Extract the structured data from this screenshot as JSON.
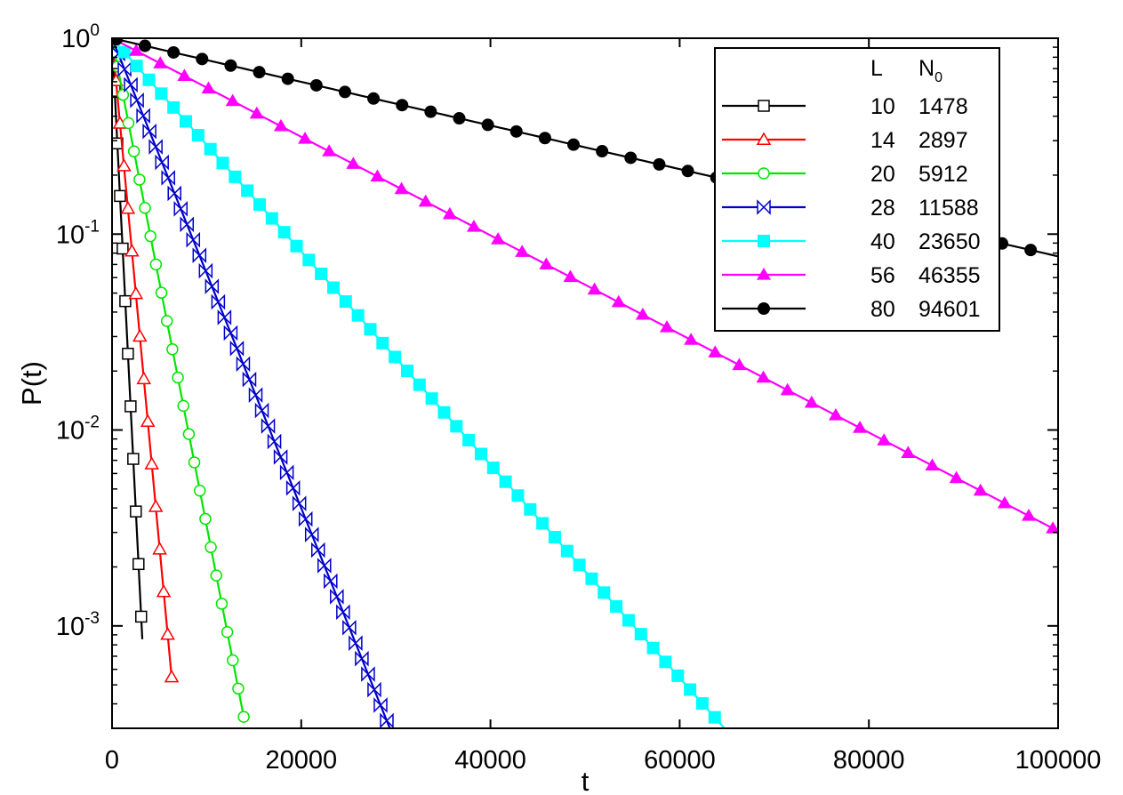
{
  "chart_data": {
    "type": "line",
    "title": "",
    "xlabel": "t",
    "ylabel": "P(t)",
    "xlim": [
      0,
      100000
    ],
    "ylim": [
      0.0003,
      1.0
    ],
    "yscale": "log",
    "x_ticks": [
      0,
      20000,
      40000,
      60000,
      80000,
      100000
    ],
    "x_tick_labels": [
      "0",
      "20000",
      "40000",
      "60000",
      "80000",
      "100000"
    ],
    "y_ticks": [
      {
        "value": 1,
        "base": "10",
        "exp": "0"
      },
      {
        "value": 0.1,
        "base": "10",
        "exp": "-1"
      },
      {
        "value": 0.01,
        "base": "10",
        "exp": "-2"
      },
      {
        "value": 0.001,
        "base": "10",
        "exp": "-3"
      }
    ],
    "grid": false,
    "legend": {
      "placement": "top-right",
      "header_col1": "L",
      "header_col2_base": "N",
      "header_col2_sub": "0"
    },
    "series": [
      {
        "L": "10",
        "N0": "1478",
        "color": "#000000",
        "marker": "open-square",
        "tau": 453,
        "t_end": 3200,
        "marker_step": 280,
        "marker_start": 0
      },
      {
        "L": "14",
        "N0": "2897",
        "color": "#ff0000",
        "marker": "open-triangle",
        "tau": 839,
        "t_end": 6300,
        "marker_step": 420,
        "marker_start": 0
      },
      {
        "L": "20",
        "N0": "5912",
        "color": "#00e600",
        "marker": "open-circle",
        "tau": 1745,
        "t_end": 14000,
        "marker_step": 580,
        "marker_start": 0
      },
      {
        "L": "28",
        "N0": "11588",
        "color": "#0000cc",
        "marker": "bowtie",
        "tau": 3620,
        "t_end": 29600,
        "marker_step": 660,
        "marker_start": 0
      },
      {
        "L": "40",
        "N0": "23650",
        "color": "#00ffff",
        "marker": "filled-square",
        "tau": 7980,
        "t_end": 66000,
        "marker_step": 1300,
        "marker_start": 0
      },
      {
        "L": "56",
        "N0": "46355",
        "color": "#ff00ff",
        "marker": "filled-triangle",
        "tau": 17260,
        "t_end": 100000,
        "marker_step": 2550,
        "marker_start": 0
      },
      {
        "L": "80",
        "N0": "94601",
        "color": "#000000",
        "marker": "filled-circle",
        "tau": 39000,
        "t_end": 100000,
        "marker_step": 3020,
        "marker_start": 460
      }
    ]
  }
}
